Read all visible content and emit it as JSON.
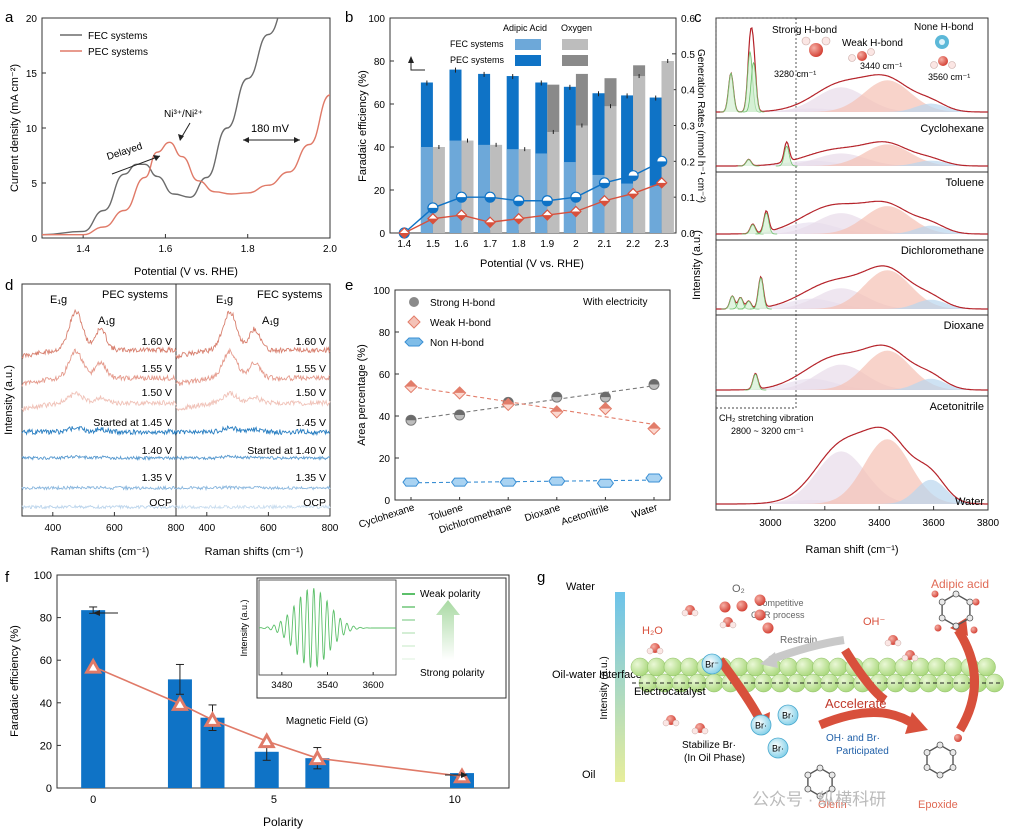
{
  "panels": {
    "a": {
      "letter": "a",
      "xlabel": "Potential (V vs. RHE)",
      "ylabel": "Current density (mA cm⁻²)",
      "legend": [
        "FEC systems",
        "PEC systems"
      ],
      "annotations": {
        "delayed": "Delayed",
        "redox": "Ni³⁺/Ni²⁺",
        "shift": "180 mV"
      }
    },
    "b": {
      "letter": "b",
      "xlabel": "Potential (V vs. RHE)",
      "ylabel_left": "Faradaic efficiency (%)",
      "ylabel_right": "Generation Rates (mmol h⁻¹ cm⁻²)",
      "legend_headers": [
        "Adipic Acid",
        "Oxygen"
      ],
      "legend_rows": [
        "FEC systems",
        "PEC systems"
      ]
    },
    "c": {
      "letter": "c",
      "xlabel": "Raman shift (cm⁻¹)",
      "ylabel": "Intensity (a.u.)",
      "solvents": [
        "Cyclohexane",
        "Toluene",
        "Dichloromethane",
        "Dioxane",
        "Acetonitrile",
        "Water"
      ],
      "hbond_labels": [
        "Strong H-bond",
        "Weak H-bond",
        "None H-bond"
      ],
      "hbond_positions": [
        "3280 cm⁻¹",
        "3440 cm⁻¹",
        "3560 cm⁻¹"
      ],
      "ch2_note": "CH₂ stretching vibration",
      "ch2_range": "2800 ~ 3200 cm⁻¹"
    },
    "d": {
      "letter": "d",
      "xlabel": "Raman shifts (cm⁻¹)",
      "ylabel": "Intensity (a.u.)",
      "titles": [
        "PEC systems",
        "FEC systems"
      ],
      "peaks": [
        "E₁g",
        "A₁g"
      ],
      "left_labels": [
        "1.60 V",
        "1.55 V",
        "1.50 V",
        "Started at 1.45 V",
        "1.40 V",
        "1.35 V",
        "OCP"
      ],
      "right_labels": [
        "1.60 V",
        "1.55 V",
        "1.50 V",
        "1.45 V",
        "Started at 1.40 V",
        "1.35 V",
        "OCP"
      ]
    },
    "e": {
      "letter": "e",
      "ylabel": "Area percentage (%)",
      "legend": [
        "Strong H-bond",
        "Weak H-bond",
        "Non H-bond"
      ],
      "note": "With electricity"
    },
    "f": {
      "letter": "f",
      "xlabel": "Polarity",
      "ylabel": "Faradaic efficiency (%)",
      "inset_xlabel": "Magnetic Field (G)",
      "inset_ylabel": "Intensity (a.u.)",
      "inset_legend_top": "Weak polarity",
      "inset_legend_bottom": "Strong polarity"
    },
    "g": {
      "letter": "g",
      "ylabel": "Intensity (a.u.)",
      "scale_labels": [
        "Water",
        "Oil-water Interface",
        "Oil"
      ],
      "labels": {
        "o2": "O₂",
        "h2o": "H₂O",
        "oh": "OH⁻",
        "br": "Br⁻",
        "brrad": "Br·",
        "competitive": "Competitive OER process",
        "restrain": "Restrain",
        "electrocatalyst": "Electrocatalyst",
        "accelerate": "Accelerate",
        "stabilize": "Stabilize Br· (In Oil Phase)",
        "participated": "OH· and Br· Participated",
        "olefin": "Olefin",
        "epoxide": "Epoxide",
        "adipic": "Adipic acid"
      }
    },
    "watermark": "公众号 · 纵横科研"
  },
  "chart_data": [
    {
      "panel": "a",
      "type": "line",
      "xlim": [
        1.3,
        2.0
      ],
      "ylim": [
        0,
        20
      ],
      "xticks": [
        1.4,
        1.6,
        1.8,
        2.0
      ],
      "yticks": [
        0,
        5,
        10,
        15,
        20
      ],
      "series": [
        {
          "name": "FEC systems",
          "color": "#6b6b6b",
          "x": [
            1.3,
            1.4,
            1.45,
            1.5,
            1.53,
            1.55,
            1.58,
            1.62,
            1.66,
            1.7,
            1.75,
            1.8,
            1.85,
            1.9,
            1.95
          ],
          "y": [
            0.3,
            0.6,
            2.5,
            5.8,
            6.7,
            6.7,
            5.6,
            4.0,
            3.7,
            5.5,
            10.0,
            14.5,
            18.5,
            22,
            25
          ]
        },
        {
          "name": "PEC systems",
          "color": "#e07a68",
          "x": [
            1.3,
            1.4,
            1.45,
            1.5,
            1.55,
            1.58,
            1.61,
            1.64,
            1.68,
            1.72,
            1.76,
            1.8,
            1.85,
            1.9,
            1.95,
            2.0
          ],
          "y": [
            0.3,
            0.3,
            1.0,
            2.5,
            5.5,
            7.8,
            8.7,
            7.4,
            5.2,
            4.2,
            4.0,
            4.1,
            4.8,
            6.0,
            8.5,
            13.0
          ]
        }
      ]
    },
    {
      "panel": "b",
      "type": "bar",
      "categories": [
        "1.4",
        "1.5",
        "1.6",
        "1.7",
        "1.8",
        "1.9",
        "2",
        "2.1",
        "2.2",
        "2.3"
      ],
      "ylim_left": [
        0,
        100
      ],
      "yticks_left": [
        0,
        20,
        40,
        60,
        80,
        100
      ],
      "ylim_right": [
        0,
        0.6
      ],
      "yticks_right": [
        0.0,
        0.1,
        0.2,
        0.3,
        0.4,
        0.5,
        0.6
      ],
      "series": [
        {
          "name": "PEC Adipic Acid FE",
          "color": "#0f73c6",
          "values": [
            0,
            70,
            76,
            74,
            73,
            70,
            68,
            65,
            64,
            63
          ]
        },
        {
          "name": "FEC Adipic Acid FE",
          "color": "#6da8d9",
          "values": [
            0,
            40,
            43,
            41,
            39,
            37,
            33,
            27,
            23,
            22
          ]
        },
        {
          "name": "FEC Oxygen FE",
          "color": "#bdbdbd",
          "values": [
            0,
            40,
            43,
            41,
            39,
            47,
            50,
            59,
            73,
            80
          ]
        },
        {
          "name": "PEC Oxygen FE",
          "color": "#8a8a8a",
          "values": [
            0,
            0,
            0,
            0,
            0,
            69,
            74,
            72,
            78,
            80
          ]
        },
        {
          "name": "PEC Adipic Acid rate",
          "color": "#0f73c6",
          "values": [
            0,
            0.07,
            0.1,
            0.1,
            0.09,
            0.09,
            0.1,
            0.14,
            0.16,
            0.2
          ]
        },
        {
          "name": "FEC Adipic Acid rate",
          "color": "#d8503c",
          "values": [
            0,
            0.04,
            0.05,
            0.03,
            0.04,
            0.05,
            0.06,
            0.09,
            0.11,
            0.14
          ]
        }
      ]
    },
    {
      "panel": "c",
      "type": "line",
      "xlim": [
        2800,
        3800
      ],
      "xticks": [
        3000,
        3200,
        3400,
        3600,
        3800
      ]
    },
    {
      "panel": "d",
      "type": "line",
      "xlim": [
        300,
        800
      ],
      "xticks": [
        400,
        600,
        800
      ],
      "peak_positions": [
        475,
        555
      ]
    },
    {
      "panel": "e",
      "type": "scatter",
      "categories": [
        "Cyclohexane",
        "Toluene",
        "Dichloromethane",
        "Dioxane",
        "Acetonitrile",
        "Water"
      ],
      "ylim": [
        0,
        100
      ],
      "yticks": [
        0,
        20,
        40,
        60,
        80,
        100
      ],
      "series": [
        {
          "name": "Strong H-bond",
          "color": "#7a7a7a",
          "values": [
            38,
            40.5,
            46.5,
            49,
            49,
            55
          ]
        },
        {
          "name": "Weak H-bond",
          "color": "#e27d6a",
          "values": [
            54,
            51,
            45.5,
            42,
            43.5,
            34
          ]
        },
        {
          "name": "Non H-bond",
          "color": "#3a8fd4",
          "values": [
            8.5,
            8.5,
            8.5,
            9,
            8,
            10.5
          ]
        }
      ]
    },
    {
      "panel": "f",
      "type": "bar",
      "x": [
        0,
        2.4,
        3.3,
        4.8,
        6.2,
        10.2
      ],
      "xlim": [
        -1,
        11.5
      ],
      "ylim": [
        0,
        100
      ],
      "xticks": [
        0,
        5,
        10
      ],
      "yticks": [
        0,
        20,
        40,
        60,
        80,
        100
      ],
      "series": [
        {
          "name": "Faradaic efficiency",
          "color": "#0f73c6",
          "values": [
            83.5,
            51,
            33,
            17,
            14,
            7
          ],
          "errors": [
            1.5,
            7,
            6,
            4,
            5,
            0
          ]
        },
        {
          "name": "Triangle marker",
          "color": "#e07a68",
          "values": [
            57,
            39.5,
            32,
            22,
            14,
            5.5
          ]
        }
      ]
    },
    {
      "panel": "f-inset",
      "type": "line",
      "xlim": [
        3450,
        3630
      ],
      "xticks": [
        3480,
        3540,
        3600
      ]
    }
  ]
}
